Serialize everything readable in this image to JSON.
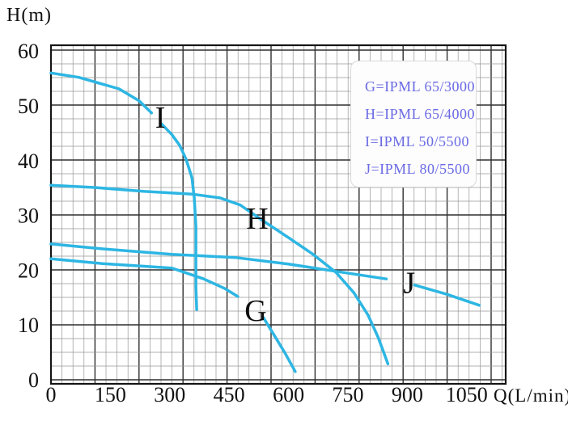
{
  "axes": {
    "y_title": "H(m)",
    "x_title": "Q(L/min)",
    "x_ticks": [
      0,
      150,
      300,
      450,
      600,
      750,
      900,
      1050
    ],
    "y_ticks": [
      60,
      50,
      40,
      30,
      20,
      10,
      0
    ]
  },
  "legend": {
    "entries": [
      "G=IPML 65/3000",
      "H=IPML 65/4000",
      "I=IPML 50/5500",
      "J=IPML 80/5500"
    ]
  },
  "chart_data": {
    "type": "line",
    "title": "",
    "xlabel": "Q(L/min)",
    "ylabel": "H(m)",
    "xlim": [
      0,
      1150
    ],
    "ylim": [
      0,
      61
    ],
    "grid": true,
    "legend_position": "top-right",
    "series": [
      {
        "name": "IPML 65/3000",
        "label": "G",
        "label_pos": [
          517,
          12.7
        ],
        "segments": [
          [
            [
              0,
              22.1
            ],
            [
              131,
              21.2
            ],
            [
              220,
              20.8
            ],
            [
              305,
              20.4
            ],
            [
              386,
              18.4
            ],
            [
              438,
              16.7
            ],
            [
              472,
              15.2
            ]
          ],
          [
            [
              536,
              11.4
            ],
            [
              564,
              8.1
            ],
            [
              591,
              4.9
            ],
            [
              617,
              1.5
            ]
          ]
        ]
      },
      {
        "name": "IPML 65/4000",
        "label": "H",
        "label_pos": [
          521,
          29.5
        ],
        "segments": [
          [
            [
              0,
              35.5
            ],
            [
              110,
              35.1
            ],
            [
              233,
              34.4
            ],
            [
              356,
              33.9
            ],
            [
              427,
              33.2
            ],
            [
              478,
              31.9
            ],
            [
              534,
              29.1
            ],
            [
              601,
              25.9
            ],
            [
              662,
              22.9
            ],
            [
              720,
              19.6
            ],
            [
              765,
              15.9
            ],
            [
              801,
              11.8
            ],
            [
              826,
              7.8
            ],
            [
              842,
              4.7
            ],
            [
              851,
              2.9
            ]
          ]
        ]
      },
      {
        "name": "IPML 50/5500",
        "label": "I",
        "label_pos": [
          276,
          47.9
        ],
        "segments": [
          [
            [
              0,
              56.0
            ],
            [
              70,
              55.2
            ],
            [
              172,
              53.1
            ],
            [
              223,
              50.9
            ],
            [
              254,
              48.7
            ]
          ],
          [
            [
              278,
              46.8
            ],
            [
              305,
              44.8
            ],
            [
              325,
              42.8
            ],
            [
              341,
              40.3
            ],
            [
              356,
              36.9
            ],
            [
              362,
              33.2
            ],
            [
              366,
              28.0
            ],
            [
              366,
              22.1
            ],
            [
              366,
              17.0
            ],
            [
              368,
              12.8
            ]
          ]
        ]
      },
      {
        "name": "IPML 80/5500",
        "label": "J",
        "label_pos": [
          905,
          17.8
        ],
        "segments": [
          [
            [
              0,
              24.8
            ],
            [
              131,
              23.9
            ],
            [
              305,
              22.9
            ],
            [
              468,
              22.3
            ],
            [
              601,
              21.1
            ],
            [
              720,
              19.8
            ],
            [
              847,
              18.4
            ]
          ],
          [
            [
              918,
              17.3
            ],
            [
              1000,
              15.6
            ],
            [
              1082,
              13.6
            ]
          ]
        ]
      }
    ]
  },
  "colors": {
    "curve": "#2db6e3",
    "legend_text": "#6a6ae4",
    "grid_minor": "#969696",
    "grid_major": "#2e2e2e",
    "border": "#151515",
    "text": "#111111"
  }
}
